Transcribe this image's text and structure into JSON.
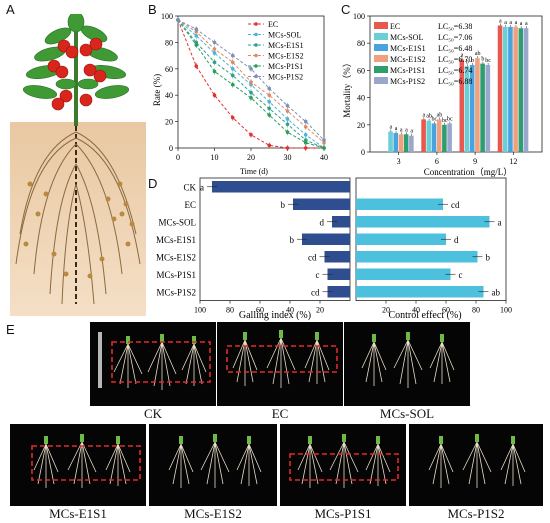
{
  "panels": {
    "a": "A",
    "b": "B",
    "c": "C",
    "d": "D",
    "e": "E"
  },
  "chart_b": {
    "type": "line",
    "ylabel": "Rate (%)",
    "xlabel": "Time (d)",
    "x": [
      0,
      5,
      10,
      15,
      20,
      25,
      30,
      35,
      40
    ],
    "ylim": [
      0,
      100
    ],
    "xlim": [
      0,
      40
    ],
    "xticks": [
      0,
      10,
      20,
      30,
      40
    ],
    "yticks": [
      0,
      20,
      40,
      60,
      80,
      100
    ],
    "series": [
      {
        "name": "EC",
        "color": "#e0312f",
        "values": [
          97,
          62,
          40,
          23,
          10,
          2,
          0,
          0,
          0
        ]
      },
      {
        "name": "MCs-SOL",
        "color": "#4db3d9",
        "values": [
          97,
          85,
          72,
          60,
          48,
          35,
          22,
          10,
          0
        ]
      },
      {
        "name": "MCs-E1S1",
        "color": "#2fa08a",
        "values": [
          97,
          80,
          65,
          55,
          42,
          30,
          18,
          6,
          0
        ]
      },
      {
        "name": "MCs-E1S2",
        "color": "#e08a63",
        "values": [
          97,
          88,
          75,
          65,
          50,
          40,
          28,
          16,
          4
        ]
      },
      {
        "name": "MCs-P1S1",
        "color": "#2a9d5c",
        "values": [
          97,
          78,
          58,
          48,
          38,
          25,
          12,
          4,
          0
        ]
      },
      {
        "name": "MCs-P1S2",
        "color": "#7f8fb5",
        "values": [
          97,
          90,
          80,
          70,
          60,
          45,
          32,
          20,
          6
        ]
      }
    ]
  },
  "chart_c": {
    "type": "bar",
    "ylabel": "Mortality（%）",
    "xlabel": "Concentration（mg/L）",
    "categories": [
      "3",
      "6",
      "9",
      "12"
    ],
    "ylim": [
      0,
      100
    ],
    "yticks": [
      0,
      20,
      40,
      60,
      80,
      100
    ],
    "series": [
      {
        "name": "EC",
        "lc50": "LC₅₀=6.38",
        "color": "#e8584f",
        "values": [
          0,
          24,
          68,
          93
        ],
        "letters": [
          "a",
          "a",
          "a",
          "a"
        ]
      },
      {
        "name": "MCs-SOL",
        "lc50": "LC₅₀=7.06",
        "color": "#6ad0d6",
        "values": [
          15,
          23,
          63,
          92
        ],
        "letters": [
          "a",
          "ab",
          "b",
          "a"
        ]
      },
      {
        "name": "MCs-E1S1",
        "lc50": "LC₅₀=6.48",
        "color": "#4aa3df",
        "values": [
          14,
          21,
          64,
          92
        ],
        "letters": [
          "a",
          "bc",
          "b",
          "a"
        ]
      },
      {
        "name": "MCs-E1S2",
        "lc50": "LC₅₀=6.70",
        "color": "#f1a07e",
        "values": [
          13,
          24,
          69,
          92
        ],
        "letters": [
          "a",
          "ab",
          "ab",
          "a"
        ]
      },
      {
        "name": "MCs-P1S1",
        "lc50": "LC₅₀=6.74",
        "color": "#2e9e6f",
        "values": [
          13,
          20,
          65,
          91
        ],
        "letters": [
          "a",
          "bc",
          "b",
          "a"
        ]
      },
      {
        "name": "MCs-P1S2",
        "lc50": "LC₅₀=6.88",
        "color": "#9aa6cd",
        "values": [
          12,
          21,
          64,
          91
        ],
        "letters": [
          "a",
          "bc",
          "bc",
          "a"
        ]
      }
    ],
    "first_group_extra": [
      15
    ]
  },
  "chart_d": {
    "type": "bar",
    "categories": [
      "CK",
      "EC",
      "MCs-SOL",
      "MCs-E1S1",
      "MCs-E1S2",
      "MCs-P1S1",
      "MCs-P1S2"
    ],
    "galling_index": [
      92,
      38,
      12,
      32,
      17,
      15,
      15
    ],
    "galling_letters": [
      "a",
      "b",
      "d",
      "b",
      "cd",
      "c",
      "cd"
    ],
    "control_effect": [
      0,
      58,
      89,
      60,
      81,
      63,
      85
    ],
    "control_letters": [
      "",
      "cd",
      "a",
      "d",
      "b",
      "c",
      "ab"
    ],
    "left_xlabel": "Galling index (%)",
    "right_xlabel": "Control effect (%)",
    "left_ticks": [
      "100",
      "80",
      "60",
      "40",
      "20"
    ],
    "right_ticks": [
      "20",
      "40",
      "60",
      "80",
      "100"
    ],
    "left_color": "#2f4e8f",
    "right_color": "#4cc0dc"
  },
  "panel_e_captions": [
    "CK",
    "EC",
    "MCs-SOL",
    "MCs-E1S1",
    "MCs-E1S2",
    "MCs-P1S1",
    "MCs-P1S2"
  ]
}
